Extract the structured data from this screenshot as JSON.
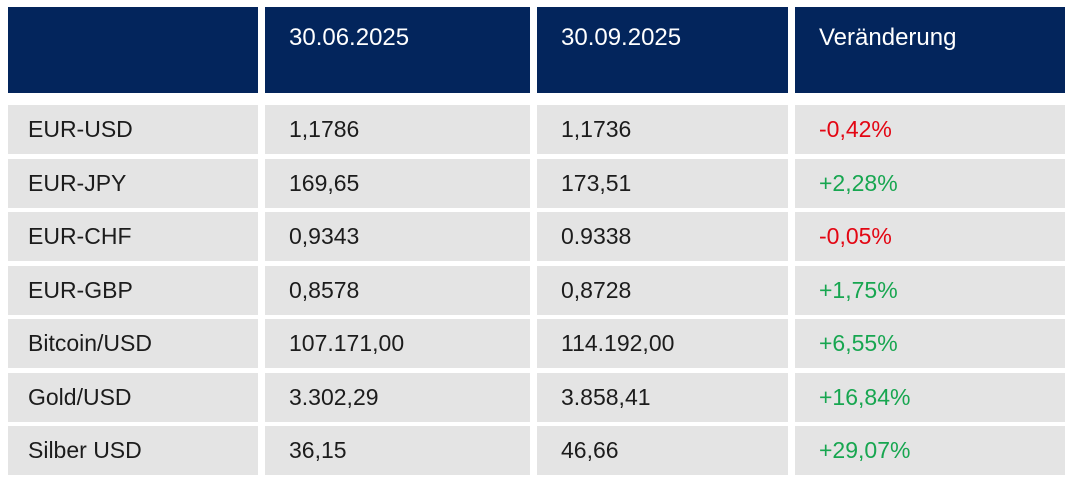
{
  "chart_data": {
    "type": "table",
    "columns": [
      "",
      "30.06.2025",
      "30.09.2025",
      "Veränderung"
    ],
    "rows": [
      [
        "EUR-USD",
        "1,1786",
        "1,1736",
        "-0,42%"
      ],
      [
        "EUR-JPY",
        "169,65",
        "173,51",
        "+2,28%"
      ],
      [
        "EUR-CHF",
        "0,9343",
        "0.9338",
        "-0,05%"
      ],
      [
        "EUR-GBP",
        "0,8578",
        "0,8728",
        "+1,75%"
      ],
      [
        "Bitcoin/USD",
        "107.171,00",
        "114.192,00",
        "+6,55%"
      ],
      [
        "Gold/USD",
        "3.302,29",
        "3.858,41",
        "+16,84%"
      ],
      [
        "Silber USD",
        "36,15",
        "46,66",
        "+29,07%"
      ]
    ]
  },
  "table": {
    "header": {
      "c0": "",
      "c1": "30.06.2025",
      "c2": "30.09.2025",
      "c3": "Veränderung"
    },
    "rows": [
      {
        "label": "EUR-USD",
        "v1": "1,1786",
        "v2": "1,1736",
        "change": "-0,42%",
        "direction": "down"
      },
      {
        "label": "EUR-JPY",
        "v1": "169,65",
        "v2": "173,51",
        "change": "+2,28%",
        "direction": "up"
      },
      {
        "label": "EUR-CHF",
        "v1": "0,9343",
        "v2": "0.9338",
        "change": "-0,05%",
        "direction": "down"
      },
      {
        "label": "EUR-GBP",
        "v1": "0,8578",
        "v2": "0,8728",
        "change": "+1,75%",
        "direction": "up"
      },
      {
        "label": "Bitcoin/USD",
        "v1": "107.171,00",
        "v2": "114.192,00",
        "change": "+6,55%",
        "direction": "up"
      },
      {
        "label": "Gold/USD",
        "v1": "3.302,29",
        "v2": "3.858,41",
        "change": "+16,84%",
        "direction": "up"
      },
      {
        "label": "Silber USD",
        "v1": "36,15",
        "v2": "46,66",
        "change": "+29,07%",
        "direction": "up"
      }
    ]
  },
  "colors": {
    "header_bg": "#03255c",
    "header_text": "#ffffff",
    "row_bg": "#e4e4e4",
    "body_text": "#1c1c1c",
    "negative": "#e30613",
    "positive": "#17a650"
  }
}
